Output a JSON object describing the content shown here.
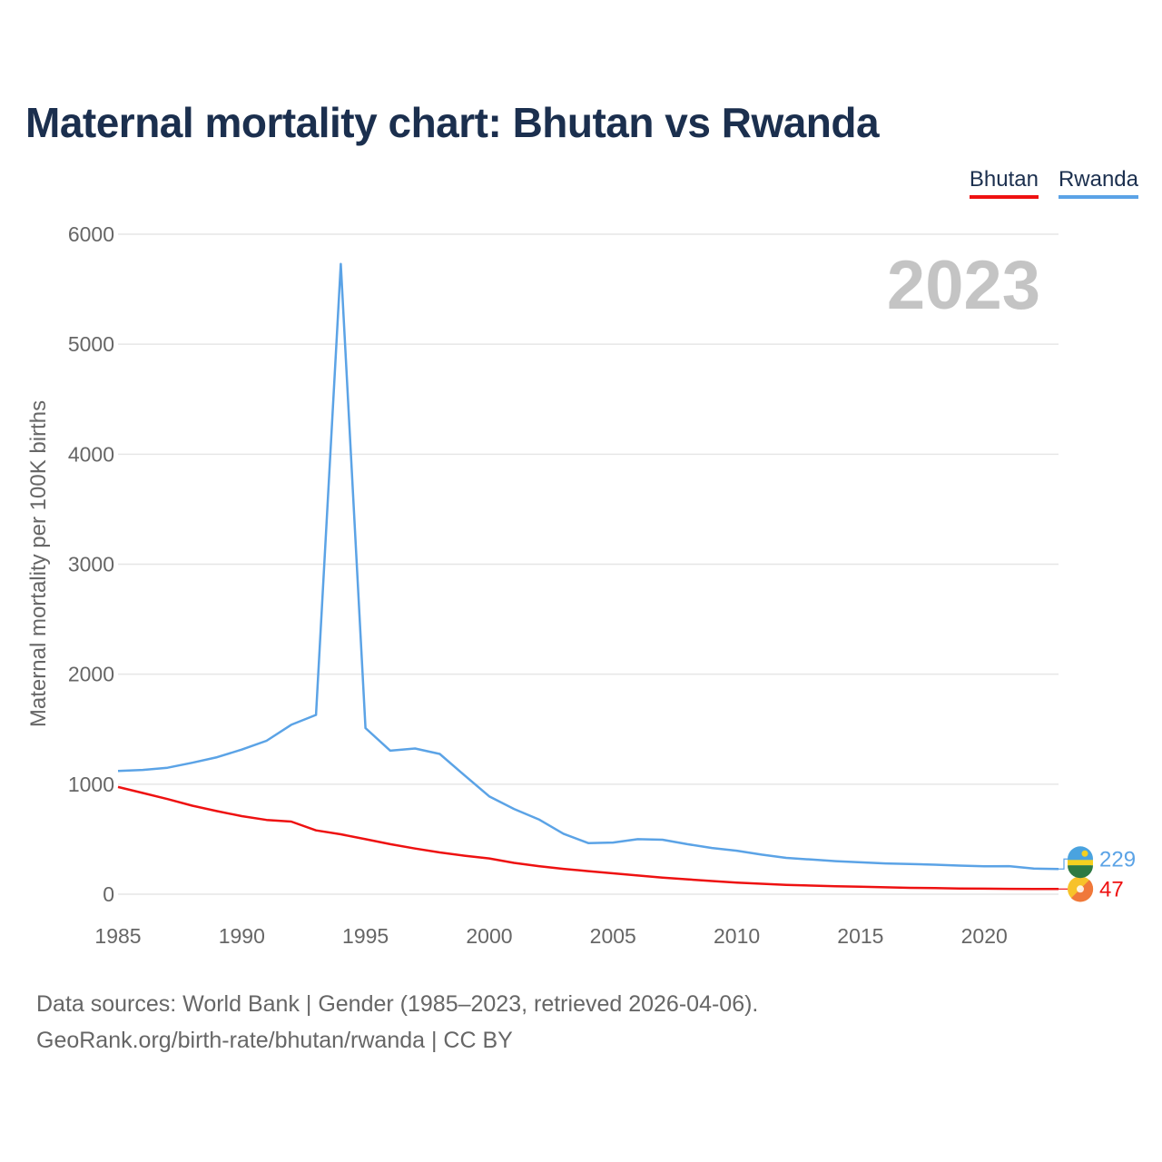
{
  "title": "Maternal mortality chart: Bhutan vs Rwanda",
  "legend": [
    {
      "label": "Bhutan",
      "color": "#ee1111"
    },
    {
      "label": "Rwanda",
      "color": "#5ba3e6"
    }
  ],
  "year_watermark": "2023",
  "footer": {
    "line1": "Data sources: World Bank | Gender (1985–2023, retrieved 2026-04-06).",
    "line2": "GeoRank.org/birth-rate/bhutan/rwanda | CC BY"
  },
  "chart_data": {
    "type": "line",
    "title": "Maternal mortality chart: Bhutan vs Rwanda",
    "xlabel": "",
    "ylabel": "Maternal mortality per 100K births",
    "xlim": [
      1985,
      2023
    ],
    "ylim": [
      0,
      6000
    ],
    "x_ticks": [
      1985,
      1990,
      1995,
      2000,
      2005,
      2010,
      2015,
      2020
    ],
    "y_ticks": [
      0,
      1000,
      2000,
      3000,
      4000,
      5000,
      6000
    ],
    "grid": true,
    "legend_position": "top-right",
    "x": [
      1985,
      1986,
      1987,
      1988,
      1989,
      1990,
      1991,
      1992,
      1993,
      1994,
      1995,
      1996,
      1997,
      1998,
      1999,
      2000,
      2001,
      2002,
      2003,
      2004,
      2005,
      2006,
      2007,
      2008,
      2009,
      2010,
      2011,
      2012,
      2013,
      2014,
      2015,
      2016,
      2017,
      2018,
      2019,
      2020,
      2021,
      2022,
      2023
    ],
    "series": [
      {
        "name": "Bhutan",
        "color": "#ee1111",
        "end_label": "47",
        "values": [
          975,
          920,
          865,
          805,
          755,
          710,
          675,
          660,
          580,
          545,
          500,
          455,
          415,
          380,
          350,
          325,
          285,
          255,
          230,
          210,
          190,
          170,
          150,
          135,
          120,
          105,
          95,
          85,
          78,
          72,
          68,
          63,
          58,
          55,
          52,
          50,
          49,
          48,
          47
        ]
      },
      {
        "name": "Rwanda",
        "color": "#5ba3e6",
        "end_label": "229",
        "values": [
          1120,
          1130,
          1150,
          1195,
          1245,
          1315,
          1395,
          1540,
          1630,
          5730,
          1510,
          1305,
          1325,
          1275,
          1080,
          890,
          775,
          680,
          550,
          465,
          470,
          500,
          495,
          455,
          420,
          395,
          360,
          330,
          315,
          300,
          290,
          280,
          275,
          268,
          260,
          253,
          255,
          233,
          229
        ]
      }
    ]
  }
}
